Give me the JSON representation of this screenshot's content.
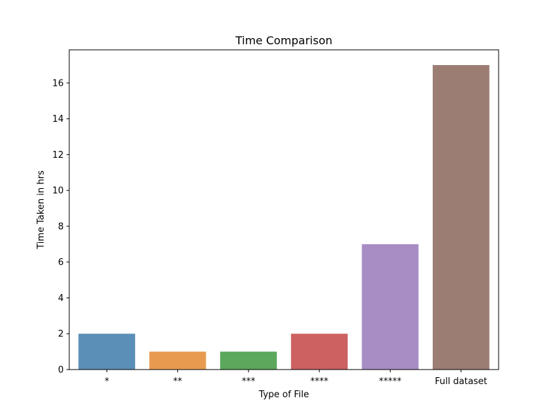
{
  "chart_data": {
    "type": "bar",
    "title": "Time Comparison",
    "xlabel": "Type of File",
    "ylabel": "Time Taken in hrs",
    "categories": [
      "*",
      "**",
      "***",
      "****",
      "*****",
      "Full dataset"
    ],
    "values": [
      2,
      1,
      1,
      2,
      7,
      17
    ],
    "ylim": [
      0,
      17.85
    ],
    "yticks": [
      0,
      2,
      4,
      6,
      8,
      10,
      12,
      14,
      16
    ],
    "grid": false,
    "legend": "none",
    "colors": [
      "#5b8fb8",
      "#e89b50",
      "#5ba75b",
      "#cd6161",
      "#a78dc4",
      "#9c7d74"
    ]
  }
}
